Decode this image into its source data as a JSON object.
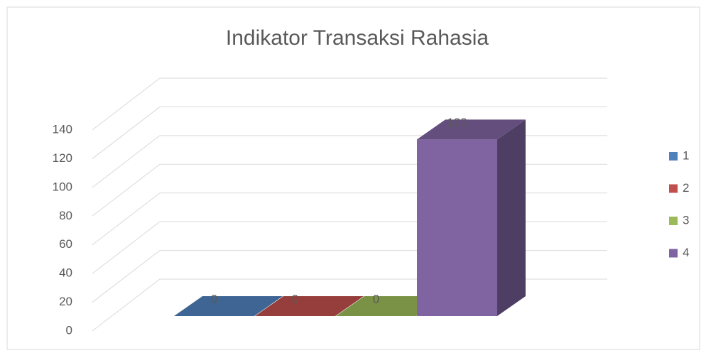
{
  "chart_data": {
    "type": "bar3d",
    "title": "Indikator Transaksi Rahasia",
    "categories": [
      null
    ],
    "series": [
      {
        "name": "1",
        "color": "#4f81bd",
        "values": [
          0
        ]
      },
      {
        "name": "2",
        "color": "#c0504d",
        "values": [
          0
        ]
      },
      {
        "name": "3",
        "color": "#9bbb59",
        "values": [
          0
        ]
      },
      {
        "name": "4",
        "color": "#8064a2",
        "values": [
          123
        ]
      }
    ],
    "ylim": [
      0,
      140
    ],
    "yticks": [
      0,
      20,
      40,
      60,
      80,
      100,
      120,
      140
    ],
    "grid": true,
    "legend": "right"
  }
}
